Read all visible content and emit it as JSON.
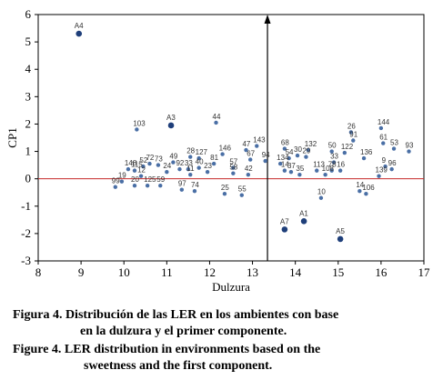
{
  "chart_data": {
    "type": "scatter",
    "xlabel": "Dulzura",
    "ylabel": "CP1",
    "xlim": [
      8,
      17
    ],
    "ylim": [
      -3,
      6
    ],
    "xticks": [
      8,
      9,
      10,
      11,
      12,
      13,
      14,
      15,
      16,
      17
    ],
    "yticks": [
      -3,
      -2,
      -1,
      0,
      1,
      2,
      3,
      4,
      5,
      6
    ],
    "reference_lines": {
      "horizontal_y": 0,
      "vertical_x": 13.35
    },
    "environments": [
      {
        "label": "A4",
        "x": 8.95,
        "y": 5.3
      },
      {
        "label": "A3",
        "x": 11.1,
        "y": 1.95
      },
      {
        "label": "A7",
        "x": 13.75,
        "y": -1.85
      },
      {
        "label": "A1",
        "x": 14.2,
        "y": -1.55
      },
      {
        "label": "A5",
        "x": 15.05,
        "y": -2.2
      }
    ],
    "lines": [
      {
        "label": "103",
        "x": 10.3,
        "y": 1.8
      },
      {
        "label": "44",
        "x": 12.15,
        "y": 2.05
      },
      {
        "label": "143",
        "x": 13.1,
        "y": 1.2
      },
      {
        "label": "47",
        "x": 12.85,
        "y": 1.05
      },
      {
        "label": "146",
        "x": 12.3,
        "y": 0.9
      },
      {
        "label": "28",
        "x": 11.55,
        "y": 0.8
      },
      {
        "label": "127",
        "x": 11.75,
        "y": 0.75
      },
      {
        "label": "49",
        "x": 11.15,
        "y": 0.6
      },
      {
        "label": "81",
        "x": 12.1,
        "y": 0.55
      },
      {
        "label": "67",
        "x": 12.95,
        "y": 0.7
      },
      {
        "label": "94",
        "x": 13.3,
        "y": 0.65
      },
      {
        "label": "72",
        "x": 10.6,
        "y": 0.55
      },
      {
        "label": "73",
        "x": 10.8,
        "y": 0.5
      },
      {
        "label": "52",
        "x": 10.45,
        "y": 0.45
      },
      {
        "label": "40",
        "x": 11.75,
        "y": 0.4
      },
      {
        "label": "92",
        "x": 11.3,
        "y": 0.35
      },
      {
        "label": "33",
        "x": 11.5,
        "y": 0.35
      },
      {
        "label": "57",
        "x": 12.55,
        "y": 0.4
      },
      {
        "label": "148",
        "x": 10.1,
        "y": 0.35
      },
      {
        "label": "115",
        "x": 10.25,
        "y": 0.3
      },
      {
        "label": "24",
        "x": 11.0,
        "y": 0.25
      },
      {
        "label": "11",
        "x": 11.55,
        "y": 0.15
      },
      {
        "label": "23",
        "x": 11.95,
        "y": 0.25
      },
      {
        "label": "12",
        "x": 10.4,
        "y": 0.1
      },
      {
        "label": "19",
        "x": 9.95,
        "y": -0.1
      },
      {
        "label": "99",
        "x": 9.8,
        "y": -0.3
      },
      {
        "label": "20",
        "x": 10.25,
        "y": -0.25
      },
      {
        "label": "125",
        "x": 10.55,
        "y": -0.25
      },
      {
        "label": "59",
        "x": 10.85,
        "y": -0.25
      },
      {
        "label": "97",
        "x": 11.35,
        "y": -0.4
      },
      {
        "label": "74",
        "x": 11.65,
        "y": -0.45
      },
      {
        "label": "25",
        "x": 12.35,
        "y": -0.55
      },
      {
        "label": "55",
        "x": 12.75,
        "y": -0.6
      },
      {
        "label": "58",
        "x": 12.55,
        "y": 0.2
      },
      {
        "label": "42",
        "x": 12.9,
        "y": 0.15
      },
      {
        "label": "68",
        "x": 13.75,
        "y": 1.1
      },
      {
        "label": "132",
        "x": 14.3,
        "y": 1.05
      },
      {
        "label": "30",
        "x": 14.05,
        "y": 0.85
      },
      {
        "label": "29",
        "x": 14.25,
        "y": 0.8
      },
      {
        "label": "54",
        "x": 13.85,
        "y": 0.75
      },
      {
        "label": "134",
        "x": 13.65,
        "y": 0.55
      },
      {
        "label": "14",
        "x": 13.75,
        "y": 0.3
      },
      {
        "label": "37",
        "x": 13.9,
        "y": 0.25
      },
      {
        "label": "35",
        "x": 14.1,
        "y": 0.15
      },
      {
        "label": "113",
        "x": 14.5,
        "y": 0.3
      },
      {
        "label": "33",
        "x": 14.9,
        "y": 0.6
      },
      {
        "label": "78",
        "x": 14.85,
        "y": 0.3
      },
      {
        "label": "16",
        "x": 15.05,
        "y": 0.3
      },
      {
        "label": "50",
        "x": 14.85,
        "y": 1.0
      },
      {
        "label": "122",
        "x": 15.15,
        "y": 0.95
      },
      {
        "label": "26",
        "x": 15.3,
        "y": 1.7
      },
      {
        "label": "91",
        "x": 15.35,
        "y": 1.4
      },
      {
        "label": "144",
        "x": 16.0,
        "y": 1.85
      },
      {
        "label": "61",
        "x": 16.05,
        "y": 1.3
      },
      {
        "label": "136",
        "x": 15.6,
        "y": 0.75
      },
      {
        "label": "53",
        "x": 16.3,
        "y": 1.1
      },
      {
        "label": "93",
        "x": 16.65,
        "y": 1.0
      },
      {
        "label": "9",
        "x": 16.1,
        "y": 0.45
      },
      {
        "label": "96",
        "x": 16.25,
        "y": 0.35
      },
      {
        "label": "139",
        "x": 15.95,
        "y": 0.1
      },
      {
        "label": "108",
        "x": 14.7,
        "y": 0.15
      },
      {
        "label": "14",
        "x": 15.5,
        "y": -0.45
      },
      {
        "label": "106",
        "x": 15.65,
        "y": -0.55
      },
      {
        "label": "10",
        "x": 14.6,
        "y": -0.7
      }
    ]
  },
  "caption": {
    "es_line1": "Figura 4. Distribución de las LER en los ambientes con base",
    "es_line2": "en la dulzura y el primer componente.",
    "en_line1": "Figure 4. LER distribution in environments based on the",
    "en_line2": "sweetness and the first component."
  }
}
